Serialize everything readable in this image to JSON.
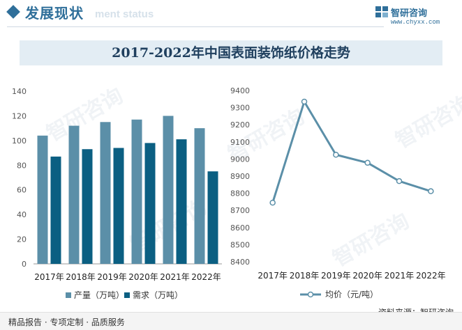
{
  "header": {
    "section_title": "发展现状",
    "section_ghost": "ment status",
    "brand_name": "智研咨询",
    "brand_url": "www.chyxx.com"
  },
  "watermark_text": "智研咨询",
  "footer": {
    "left": "精品报告 · 专项定制 · 品质服务",
    "source": "资料来源：智研咨询"
  },
  "colors": {
    "production": "#5b8fa8",
    "demand": "#0b5f82",
    "price": "#5b8fa8",
    "accent": "#2f6f9a"
  },
  "chart_data": [
    {
      "type": "bar",
      "title": "2017-2022年中国表面装饰纸价格走势",
      "categories": [
        "2017年",
        "2018年",
        "2019年",
        "2020年",
        "2021年",
        "2022年"
      ],
      "series": [
        {
          "name": "产量（万吨）",
          "values": [
            104,
            112,
            115,
            117,
            120,
            110
          ]
        },
        {
          "name": "需求（万吨）",
          "values": [
            87,
            93,
            94,
            98,
            101,
            75
          ]
        }
      ],
      "ylim": [
        0,
        140
      ],
      "yticks": [
        0,
        20,
        40,
        60,
        80,
        100,
        120,
        140
      ],
      "grid": false,
      "legend": "bottom"
    },
    {
      "type": "line",
      "categories": [
        "2017年",
        "2018年",
        "2019年",
        "2020年",
        "2021年",
        "2022年"
      ],
      "series": [
        {
          "name": "均价（元/吨）",
          "values": [
            8745,
            9335,
            9025,
            8978,
            8871,
            8812
          ]
        }
      ],
      "ylim": [
        8400,
        9400
      ],
      "yticks": [
        8400,
        8500,
        8600,
        8700,
        8800,
        8900,
        9000,
        9100,
        9200,
        9300,
        9400
      ],
      "grid": false,
      "legend": "bottom"
    }
  ]
}
